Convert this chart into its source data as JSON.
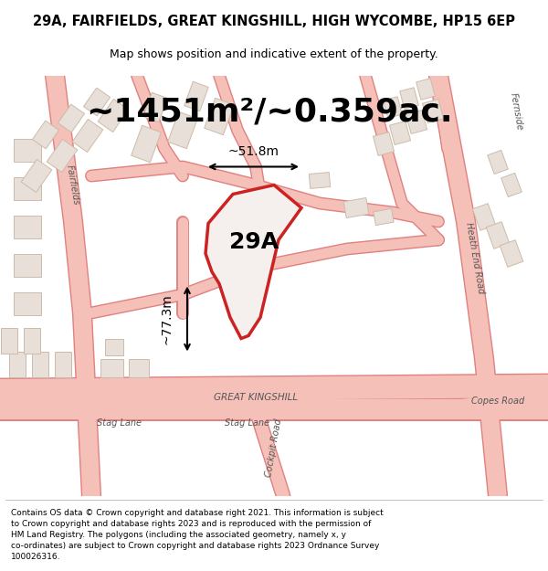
{
  "title_line1": "29A, FAIRFIELDS, GREAT KINGSHILL, HIGH WYCOMBE, HP15 6EP",
  "title_line2": "Map shows position and indicative extent of the property.",
  "area_text": "~1451m²/~0.359ac.",
  "label_29A": "29A",
  "dim_horizontal": "~51.8m",
  "dim_vertical": "~77.3m",
  "footer_lines": [
    "Contains OS data © Crown copyright and database right 2021. This information is subject",
    "to Crown copyright and database rights 2023 and is reproduced with the permission of",
    "HM Land Registry. The polygons (including the associated geometry, namely x, y",
    "co-ordinates) are subject to Crown copyright and database rights 2023 Ordnance Survey",
    "100026316."
  ],
  "map_bg": "#ffffff",
  "road_color": "#f5c0b8",
  "road_outline": "#e08080",
  "highlight_color": "#cc2222",
  "building_fill": "#e8e0d8",
  "building_outline": "#ccbbaa",
  "footer_bg": "#ffffff",
  "title_bg": "#ffffff"
}
